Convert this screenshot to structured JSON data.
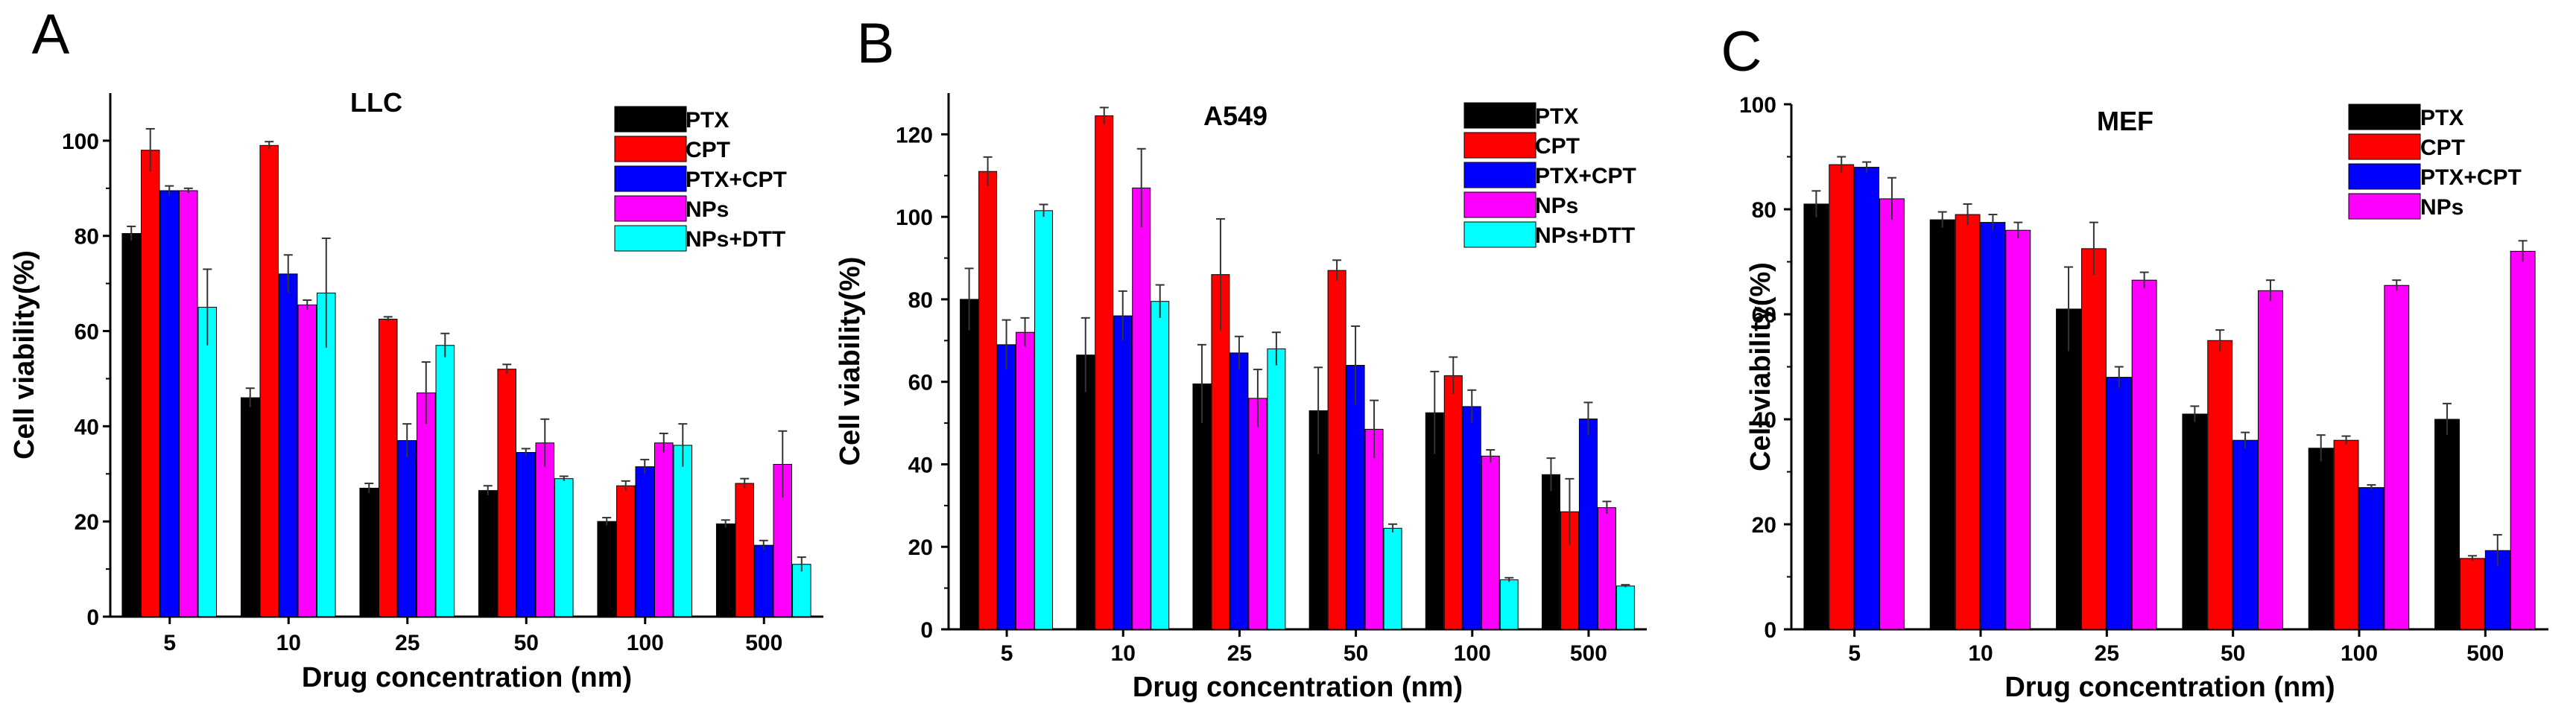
{
  "figure": {
    "panel_letters": [
      "A",
      "B",
      "C"
    ],
    "colors": {
      "PTX": "#000000",
      "CPT": "#ff0000",
      "PTX+CPT": "#0000ff",
      "NPs": "#ff00ff",
      "NPs+DTT": "#00ffff"
    }
  },
  "chart_data": [
    {
      "type": "bar",
      "panel": "A",
      "title": "LLC",
      "xlabel": "Drug concentration (nm)",
      "ylabel": "Cell viability(%)",
      "categories": [
        "5",
        "10",
        "25",
        "50",
        "100",
        "500"
      ],
      "ylim": [
        0,
        110
      ],
      "yticks": [
        0,
        20,
        40,
        60,
        80,
        100
      ],
      "legend_position": "top-right",
      "series": [
        {
          "name": "PTX",
          "values": [
            80.5,
            46,
            27,
            26.5,
            20,
            19.5
          ],
          "errors": [
            1.5,
            2,
            1,
            1,
            0.8,
            0.8
          ]
        },
        {
          "name": "CPT",
          "values": [
            98,
            99,
            62.5,
            52,
            27.5,
            28
          ],
          "errors": [
            4.5,
            0.8,
            0.5,
            1,
            1,
            1
          ]
        },
        {
          "name": "PTX+CPT",
          "values": [
            89.5,
            72,
            37,
            34.5,
            31.5,
            15
          ],
          "errors": [
            1,
            4,
            3.5,
            0.8,
            1.5,
            1
          ]
        },
        {
          "name": "NPs",
          "values": [
            89.5,
            65.5,
            47,
            36.5,
            36.5,
            32
          ],
          "errors": [
            0.5,
            1,
            6.5,
            5,
            2,
            7
          ]
        },
        {
          "name": "NPs+DTT",
          "values": [
            65,
            68,
            57,
            29,
            36,
            11
          ],
          "errors": [
            8,
            11.5,
            2.5,
            0.5,
            4.5,
            1.5
          ]
        }
      ]
    },
    {
      "type": "bar",
      "panel": "B",
      "title": "A549",
      "xlabel": "Drug concentration (nm)",
      "ylabel": "Cell viability(%)",
      "categories": [
        "5",
        "10",
        "25",
        "50",
        "100",
        "500"
      ],
      "ylim": [
        0,
        130
      ],
      "yticks": [
        0,
        20,
        40,
        60,
        80,
        100,
        120
      ],
      "legend_position": "top-right",
      "series": [
        {
          "name": "PTX",
          "values": [
            80,
            66.5,
            59.5,
            53,
            52.5,
            37.5
          ],
          "errors": [
            7.5,
            9,
            9.5,
            10.5,
            10,
            4
          ]
        },
        {
          "name": "CPT",
          "values": [
            111,
            124.5,
            86,
            87,
            61.5,
            28.5
          ],
          "errors": [
            3.5,
            2,
            13.5,
            2.5,
            4.5,
            8
          ]
        },
        {
          "name": "PTX+CPT",
          "values": [
            69,
            76,
            67,
            64,
            54,
            51
          ],
          "errors": [
            6,
            6,
            4,
            9.5,
            4,
            4
          ]
        },
        {
          "name": "NPs",
          "values": [
            72,
            107,
            56,
            48.5,
            42,
            29.5
          ],
          "errors": [
            3.5,
            9.5,
            7,
            7,
            1.5,
            1.5
          ]
        },
        {
          "name": "NPs+DTT",
          "values": [
            101.5,
            79.5,
            68,
            24.5,
            12,
            10.5
          ],
          "errors": [
            1.5,
            4,
            4,
            1,
            0.5,
            0.3
          ]
        }
      ]
    },
    {
      "type": "bar",
      "panel": "C",
      "title": "MEF",
      "xlabel": "Drug concentration (nm)",
      "ylabel": "Cell viability(%)",
      "categories": [
        "5",
        "10",
        "25",
        "50",
        "100",
        "500"
      ],
      "ylim": [
        0,
        100
      ],
      "yticks": [
        0,
        20,
        40,
        60,
        80,
        100
      ],
      "legend_position": "top-right",
      "series": [
        {
          "name": "PTX",
          "values": [
            81,
            78,
            61,
            41,
            34.5,
            40
          ],
          "errors": [
            2.5,
            1.5,
            8,
            1.5,
            2.5,
            3
          ]
        },
        {
          "name": "CPT",
          "values": [
            88.5,
            79,
            72.5,
            55,
            36,
            13.5
          ],
          "errors": [
            1.5,
            2,
            5,
            2,
            0.8,
            0.5
          ]
        },
        {
          "name": "PTX+CPT",
          "values": [
            88,
            77.5,
            48,
            36,
            27,
            15
          ],
          "errors": [
            1,
            1.5,
            2,
            1.5,
            0.5,
            3
          ]
        },
        {
          "name": "NPs",
          "values": [
            82,
            76,
            66.5,
            64.5,
            65.5,
            72
          ],
          "errors": [
            4,
            1.5,
            1.5,
            2,
            1,
            2
          ]
        }
      ]
    }
  ]
}
